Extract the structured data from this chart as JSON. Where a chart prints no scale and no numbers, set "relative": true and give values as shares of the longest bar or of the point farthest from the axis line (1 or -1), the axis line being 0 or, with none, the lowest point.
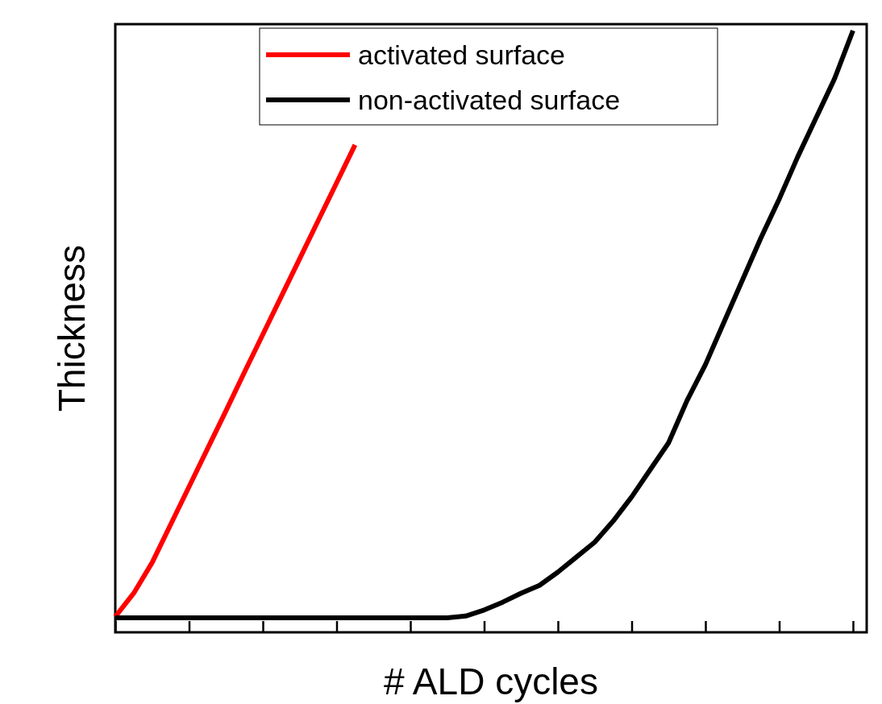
{
  "chart_data": {
    "type": "line",
    "relative": true,
    "xlabel": "# ALD cycles",
    "ylabel": "Thickness",
    "legend": "top",
    "line_style": "solid",
    "marker": "none",
    "categories": [
      null,
      null,
      null,
      null,
      null,
      null,
      null,
      null,
      null,
      null,
      null,
      null,
      null,
      null,
      null,
      null,
      null,
      null,
      null,
      null,
      null,
      null,
      null,
      null,
      null,
      null,
      null,
      null,
      null,
      null,
      null,
      null,
      null,
      null,
      null,
      null,
      null,
      null,
      null,
      null,
      null
    ],
    "series": [
      {
        "name": "activated surface",
        "color": "#ff0000",
        "values": [
          0.026,
          0.065,
          0.116,
          0.179,
          0.242,
          0.305,
          0.368,
          0.432,
          0.495,
          0.558,
          0.621,
          0.684,
          0.747,
          0.81,
          null,
          null,
          null,
          null,
          null,
          null,
          null,
          null,
          null,
          null,
          null,
          null,
          null,
          null,
          null,
          null,
          null,
          null,
          null,
          null,
          null,
          null,
          null,
          null,
          null,
          null,
          null
        ]
      },
      {
        "name": "non-activated surface",
        "color": "#000000",
        "values": [
          0.024,
          0.024,
          0.024,
          0.024,
          0.024,
          0.024,
          0.024,
          0.024,
          0.024,
          0.024,
          0.024,
          0.024,
          0.024,
          0.024,
          0.024,
          0.024,
          0.024,
          0.024,
          0.024,
          0.027,
          0.037,
          0.05,
          0.065,
          0.078,
          0.1,
          0.125,
          0.15,
          0.185,
          0.225,
          0.27,
          0.315,
          0.385,
          0.445,
          0.515,
          0.585,
          0.655,
          0.72,
          0.79,
          0.855,
          0.92,
          1.0
        ]
      }
    ]
  }
}
